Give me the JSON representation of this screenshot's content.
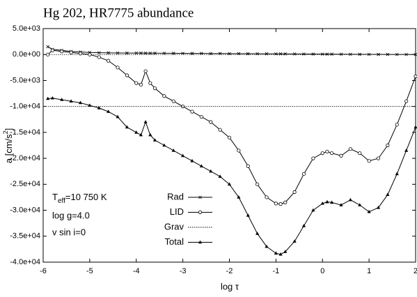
{
  "chart_data": {
    "type": "line",
    "title": "Hg 202, HR7775 abundance",
    "x_label": "log τ",
    "y_label": {
      "main": "a [cm/s",
      "superscript": "2",
      "close": "]"
    },
    "annotation": {
      "symbol": "T",
      "subscript": "eff",
      "rest": "=10 750 K",
      "lines": [
        "log g=4.0",
        "v sin i=0"
      ]
    },
    "x": [
      -5.9,
      -5.8,
      -5.6,
      -5.4,
      -5.2,
      -5.0,
      -4.8,
      -4.6,
      -4.4,
      -4.2,
      -4.0,
      -3.9,
      -3.8,
      -3.7,
      -3.6,
      -3.4,
      -3.2,
      -3.0,
      -2.8,
      -2.6,
      -2.4,
      -2.2,
      -2.0,
      -1.8,
      -1.6,
      -1.4,
      -1.2,
      -1.0,
      -0.9,
      -0.8,
      -0.6,
      -0.4,
      -0.2,
      0.0,
      0.1,
      0.2,
      0.4,
      0.6,
      0.8,
      1.0,
      1.2,
      1.4,
      1.6,
      1.8,
      2.0
    ],
    "series": [
      {
        "name": "Rad",
        "color": "#000000",
        "marker": "x",
        "values": [
          1500,
          1000,
          800,
          600,
          500,
          400,
          350,
          320,
          300,
          290,
          280,
          275,
          270,
          265,
          260,
          250,
          240,
          230,
          220,
          210,
          200,
          190,
          180,
          170,
          160,
          150,
          140,
          130,
          125,
          120,
          110,
          100,
          90,
          80,
          75,
          70,
          60,
          50,
          40,
          30,
          25,
          20,
          15,
          10,
          0
        ]
      },
      {
        "name": "LID",
        "color": "#000000",
        "marker": "circle",
        "values": [
          0,
          800,
          600,
          400,
          200,
          0,
          -500,
          -1200,
          -2500,
          -4000,
          -5500,
          -5800,
          -3200,
          -5500,
          -6500,
          -8000,
          -9000,
          -10000,
          -11000,
          -12000,
          -13000,
          -14500,
          -16000,
          -18500,
          -21500,
          -25000,
          -27500,
          -28700,
          -28800,
          -28500,
          -26500,
          -23000,
          -20000,
          -19000,
          -18700,
          -19000,
          -19500,
          -18200,
          -19000,
          -20500,
          -20000,
          -17500,
          -13500,
          -9000,
          -4200
        ]
      },
      {
        "name": "Grav",
        "color": "#000000",
        "marker": "none",
        "dash": true,
        "values": [
          -10000,
          -10000,
          -10000,
          -10000,
          -10000,
          -10000,
          -10000,
          -10000,
          -10000,
          -10000,
          -10000,
          -10000,
          -10000,
          -10000,
          -10000,
          -10000,
          -10000,
          -10000,
          -10000,
          -10000,
          -10000,
          -10000,
          -10000,
          -10000,
          -10000,
          -10000,
          -10000,
          -10000,
          -10000,
          -10000,
          -10000,
          -10000,
          -10000,
          -10000,
          -10000,
          -10000,
          -10000,
          -10000,
          -10000,
          -10000,
          -10000,
          -10000,
          -10000,
          -10000,
          -10000
        ]
      },
      {
        "name": "Total",
        "color": "#000000",
        "marker": "triangle",
        "values": [
          -8500,
          -8400,
          -8700,
          -9000,
          -9300,
          -9800,
          -10300,
          -11000,
          -12000,
          -14000,
          -15000,
          -15500,
          -13000,
          -15500,
          -16500,
          -17500,
          -18500,
          -19500,
          -20500,
          -21500,
          -22500,
          -23500,
          -25000,
          -27500,
          -31000,
          -34500,
          -37000,
          -38300,
          -38500,
          -38000,
          -36000,
          -33000,
          -30000,
          -28700,
          -28400,
          -28500,
          -29000,
          -28000,
          -29000,
          -30300,
          -29500,
          -27000,
          -23000,
          -18500,
          -14000
        ]
      }
    ],
    "xlim": [
      -6,
      2
    ],
    "xticks": [
      -6,
      -5,
      -4,
      -3,
      -2,
      -1,
      0,
      1,
      2
    ],
    "ylim": [
      -40000,
      5000
    ],
    "yticks": [
      {
        "value": 5000,
        "label": "5.0e+03"
      },
      {
        "value": 0,
        "label": "0.0e+00"
      },
      {
        "value": -5000,
        "label": "-5.0e+03"
      },
      {
        "value": -10000,
        "label": "-1.0e+04"
      },
      {
        "value": -15000,
        "label": "-1.5e+04"
      },
      {
        "value": -20000,
        "label": "-2.0e+04"
      },
      {
        "value": -25000,
        "label": "-2.5e+04"
      },
      {
        "value": -30000,
        "label": "-3.0e+04"
      },
      {
        "value": -35000,
        "label": "-3.5e+04"
      },
      {
        "value": -40000,
        "label": "-4.0e+04"
      }
    ],
    "grid": false
  }
}
